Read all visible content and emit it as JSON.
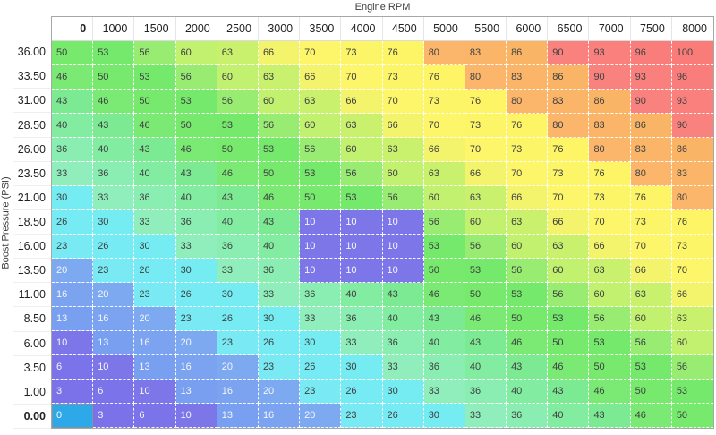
{
  "axes": {
    "x_title": "Engine RPM",
    "y_title": "Boost Pressure (PSI)"
  },
  "map": {
    "col_headers": [
      "0",
      "1000",
      "1500",
      "2000",
      "2500",
      "3000",
      "3500",
      "4000",
      "4500",
      "5000",
      "5500",
      "6000",
      "6500",
      "7000",
      "7500",
      "8000"
    ],
    "row_headers": [
      "36.00",
      "33.50",
      "31.00",
      "28.50",
      "26.00",
      "23.50",
      "21.00",
      "18.50",
      "16.00",
      "13.50",
      "11.00",
      "8.50",
      "6.00",
      "3.50",
      "1.00",
      "0.00"
    ],
    "rows": [
      [
        50,
        53,
        56,
        60,
        63,
        66,
        70,
        73,
        76,
        80,
        83,
        86,
        90,
        93,
        96,
        100
      ],
      [
        46,
        50,
        53,
        56,
        60,
        63,
        66,
        70,
        73,
        76,
        80,
        83,
        86,
        90,
        93,
        96
      ],
      [
        43,
        46,
        50,
        53,
        56,
        60,
        63,
        66,
        70,
        73,
        76,
        80,
        83,
        86,
        90,
        93
      ],
      [
        40,
        43,
        46,
        50,
        53,
        56,
        60,
        63,
        66,
        70,
        73,
        76,
        80,
        83,
        86,
        90
      ],
      [
        36,
        40,
        43,
        46,
        50,
        53,
        56,
        60,
        63,
        66,
        70,
        73,
        76,
        80,
        83,
        86
      ],
      [
        33,
        36,
        40,
        43,
        46,
        50,
        53,
        56,
        60,
        63,
        66,
        70,
        73,
        76,
        80,
        83
      ],
      [
        30,
        33,
        36,
        40,
        43,
        46,
        50,
        53,
        56,
        60,
        63,
        66,
        70,
        73,
        76,
        80
      ],
      [
        26,
        30,
        33,
        36,
        40,
        43,
        10,
        10,
        10,
        56,
        60,
        63,
        66,
        70,
        73,
        76
      ],
      [
        23,
        26,
        30,
        33,
        36,
        40,
        10,
        10,
        10,
        53,
        56,
        60,
        63,
        66,
        70,
        73
      ],
      [
        20,
        23,
        26,
        30,
        33,
        36,
        10,
        10,
        10,
        50,
        53,
        56,
        60,
        63,
        66,
        70
      ],
      [
        16,
        20,
        23,
        26,
        30,
        33,
        36,
        40,
        43,
        46,
        50,
        53,
        56,
        60,
        63,
        66
      ],
      [
        13,
        16,
        20,
        23,
        26,
        30,
        33,
        36,
        40,
        43,
        46,
        50,
        53,
        56,
        60,
        63
      ],
      [
        10,
        13,
        16,
        20,
        23,
        26,
        30,
        33,
        36,
        40,
        43,
        46,
        50,
        53,
        56,
        60
      ],
      [
        6,
        10,
        13,
        16,
        20,
        23,
        26,
        30,
        33,
        36,
        40,
        43,
        46,
        50,
        53,
        56
      ],
      [
        3,
        6,
        10,
        13,
        16,
        20,
        23,
        26,
        30,
        33,
        36,
        40,
        43,
        46,
        50,
        53
      ],
      [
        0,
        3,
        6,
        10,
        13,
        16,
        20,
        23,
        26,
        30,
        33,
        36,
        40,
        43,
        46,
        50
      ]
    ],
    "selected": {
      "row_label": "0.00",
      "col_label": "0",
      "row_index": 15,
      "col_index": 0
    }
  },
  "colors": {
    "scale": {
      "0": "#2da9ea",
      "3": "#7b71e9",
      "6": "#7b73e9",
      "10": "#7c76e9",
      "13": "#79a0f0",
      "16": "#7ba3f0",
      "20": "#7da9f1",
      "23": "#79eaf3",
      "26": "#77ebf3",
      "30": "#74ecf2",
      "33": "#8feebc",
      "36": "#8aedb1",
      "40": "#82eca1",
      "43": "#7cea92",
      "46": "#7aea74",
      "50": "#77e96d",
      "53": "#75e96b",
      "56": "#98ec72",
      "60": "#c2f06f",
      "63": "#c9f16d",
      "66": "#f3f36c",
      "70": "#fdf56a",
      "73": "#fdf568",
      "76": "#fdf466",
      "80": "#fbb66b",
      "83": "#fbb568",
      "86": "#fab465",
      "90": "#f9827f",
      "93": "#f9807d",
      "96": "#f97e7b",
      "100": "#f97c79"
    },
    "selected_bg": "#2da9ea",
    "selected_border": "#7b96a8",
    "light_text": "#f4f6fa",
    "dark_text": "#3e4142",
    "light_text_max_value": 20,
    "grid_border": "#a7a7a7",
    "dash_border": "#ffffff"
  }
}
